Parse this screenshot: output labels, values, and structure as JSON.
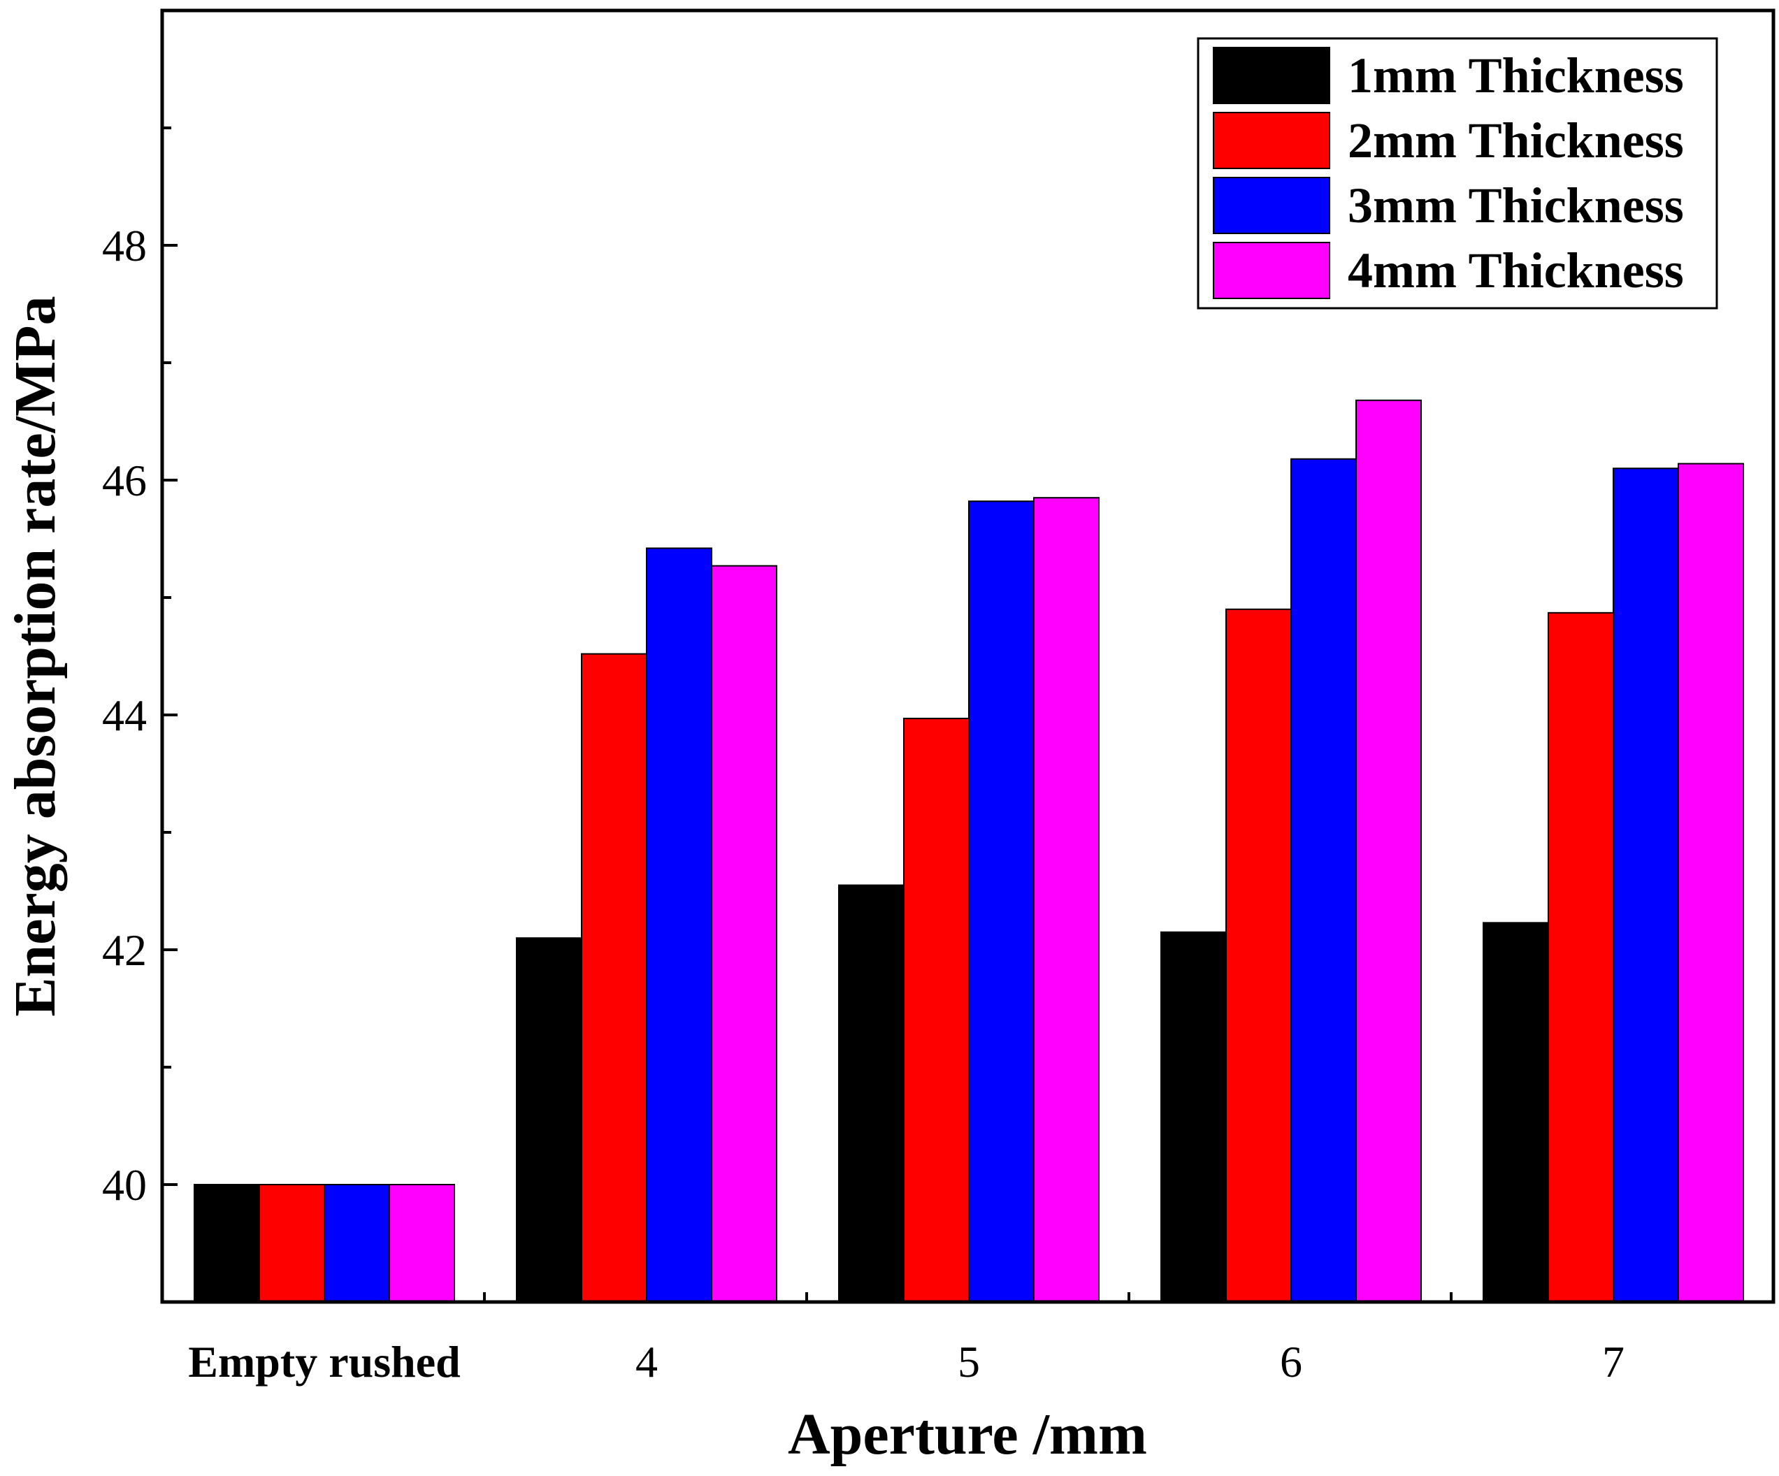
{
  "chart_data": {
    "type": "bar",
    "title": "",
    "xlabel": "Aperture /mm",
    "ylabel": "Energy absorption rate/MPa",
    "categories": [
      "Empty rushed",
      "4",
      "5",
      "6",
      "7"
    ],
    "ylim": [
      39,
      50
    ],
    "yticks": [
      40,
      42,
      44,
      46,
      48
    ],
    "grid": false,
    "legend_position": "top-right",
    "series": [
      {
        "name": "1mm Thickness",
        "color": "#000000",
        "values": [
          40.0,
          42.1,
          42.55,
          42.15,
          42.23
        ]
      },
      {
        "name": "2mm Thickness",
        "color": "#ff0000",
        "values": [
          40.0,
          44.52,
          43.97,
          44.9,
          44.87
        ]
      },
      {
        "name": "3mm Thickness",
        "color": "#0000ff",
        "values": [
          40.0,
          45.42,
          45.82,
          46.18,
          46.1
        ]
      },
      {
        "name": "4mm Thickness",
        "color": "#ff00ff",
        "values": [
          40.0,
          45.27,
          45.85,
          46.68,
          46.14
        ]
      }
    ]
  }
}
